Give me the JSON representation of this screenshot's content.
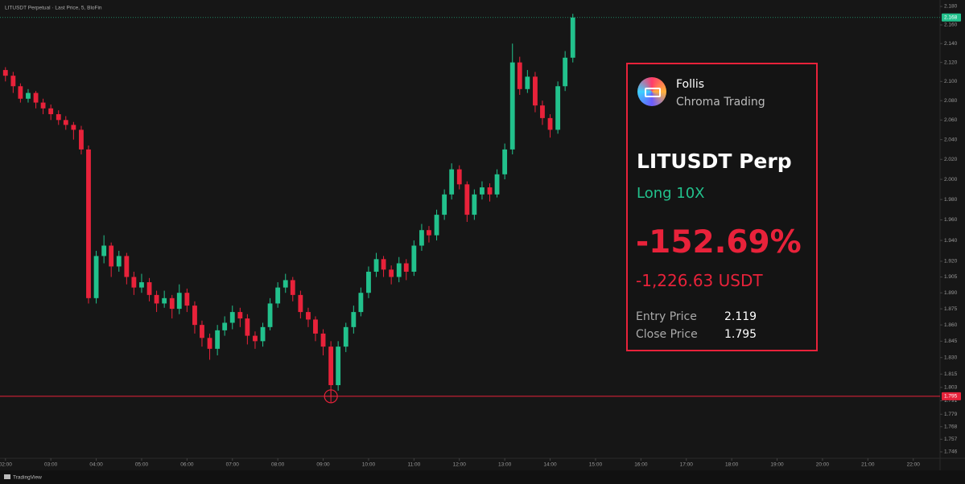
{
  "chart_data": {
    "type": "candlestick",
    "title": "LITUSDT Perpetual · Last Price, 5, BloFin",
    "brand": "TradingView",
    "up_color": "#22c18c",
    "down_color": "#e8223a",
    "log": true,
    "grid": false,
    "xlim": [
      1.88,
      22.59
    ],
    "ylim": [
      1.7404,
      2.187
    ],
    "xticks": [
      {
        "value": 2,
        "label": "02:00"
      },
      {
        "value": 3,
        "label": "03:00"
      },
      {
        "value": 4,
        "label": "04:00"
      },
      {
        "value": 5,
        "label": "05:00"
      },
      {
        "value": 6,
        "label": "06:00"
      },
      {
        "value": 7,
        "label": "07:00"
      },
      {
        "value": 8,
        "label": "08:00"
      },
      {
        "value": 9,
        "label": "09:00"
      },
      {
        "value": 10,
        "label": "10:00"
      },
      {
        "value": 11,
        "label": "11:00"
      },
      {
        "value": 12,
        "label": "12:00"
      },
      {
        "value": 13,
        "label": "13:00"
      },
      {
        "value": 14,
        "label": "14:00"
      },
      {
        "value": 15,
        "label": "15:00"
      },
      {
        "value": 16,
        "label": "16:00"
      },
      {
        "value": 17,
        "label": "17:00"
      },
      {
        "value": 18,
        "label": "18:00"
      },
      {
        "value": 19,
        "label": "19:00"
      },
      {
        "value": 20,
        "label": "20:00"
      },
      {
        "value": 21,
        "label": "21:00"
      },
      {
        "value": 22,
        "label": "22:00"
      }
    ],
    "yticks": [
      {
        "value": 2.18,
        "label": "2.180"
      },
      {
        "value": 2.16,
        "label": "2.160"
      },
      {
        "value": 2.14,
        "label": "2.140"
      },
      {
        "value": 2.12,
        "label": "2.120"
      },
      {
        "value": 2.1,
        "label": "2.100"
      },
      {
        "value": 2.08,
        "label": "2.080"
      },
      {
        "value": 2.06,
        "label": "2.060"
      },
      {
        "value": 2.04,
        "label": "2.040"
      },
      {
        "value": 2.02,
        "label": "2.020"
      },
      {
        "value": 2.0,
        "label": "2.000"
      },
      {
        "value": 1.98,
        "label": "1.980"
      },
      {
        "value": 1.96,
        "label": "1.960"
      },
      {
        "value": 1.94,
        "label": "1.940"
      },
      {
        "value": 1.92,
        "label": "1.920"
      },
      1.905,
      {
        "value": 1.89,
        "label": "1.890"
      },
      1.875,
      {
        "value": 1.86,
        "label": "1.860"
      },
      1.845,
      {
        "value": 1.83,
        "label": "1.830"
      },
      1.815,
      1.803,
      1.791,
      1.779,
      1.768,
      1.757,
      1.746
    ],
    "last_price": 2.168,
    "price_line": 1.795,
    "x": [
      2,
      2.17,
      2.33,
      2.5,
      2.67,
      2.83,
      3,
      3.17,
      3.33,
      3.5,
      3.67,
      3.83,
      4,
      4.17,
      4.33,
      4.5,
      4.67,
      4.83,
      5,
      5.17,
      5.33,
      5.5,
      5.67,
      5.83,
      6,
      6.17,
      6.33,
      6.5,
      6.67,
      6.83,
      7,
      7.17,
      7.33,
      7.5,
      7.67,
      7.83,
      8,
      8.17,
      8.33,
      8.5,
      8.67,
      8.83,
      9,
      9.17,
      9.33,
      9.5,
      9.67,
      9.83,
      10,
      10.17,
      10.33,
      10.5,
      10.67,
      10.83,
      11,
      11.17,
      11.33,
      11.5,
      11.67,
      11.83,
      12,
      12.17,
      12.33,
      12.5,
      12.67,
      12.83,
      13,
      13.17,
      13.33,
      13.5,
      13.67,
      13.83,
      14,
      14.17,
      14.33,
      14.5
    ],
    "ohlc": [
      [
        2.112,
        2.115,
        2.1,
        2.106
      ],
      [
        2.106,
        2.11,
        2.088,
        2.095
      ],
      [
        2.095,
        2.098,
        2.078,
        2.082
      ],
      [
        2.082,
        2.092,
        2.078,
        2.088
      ],
      [
        2.088,
        2.09,
        2.072,
        2.078
      ],
      [
        2.078,
        2.082,
        2.066,
        2.072
      ],
      [
        2.072,
        2.076,
        2.06,
        2.066
      ],
      [
        2.066,
        2.07,
        2.055,
        2.06
      ],
      [
        2.06,
        2.064,
        2.05,
        2.055
      ],
      [
        2.055,
        2.058,
        2.04,
        2.05
      ],
      [
        2.05,
        2.054,
        2.025,
        2.03
      ],
      [
        2.03,
        2.034,
        1.88,
        1.885
      ],
      [
        1.885,
        1.93,
        1.88,
        1.925
      ],
      [
        1.925,
        1.945,
        1.918,
        1.935
      ],
      [
        1.935,
        1.938,
        1.905,
        1.915
      ],
      [
        1.915,
        1.93,
        1.91,
        1.925
      ],
      [
        1.925,
        1.928,
        1.898,
        1.905
      ],
      [
        1.905,
        1.91,
        1.888,
        1.895
      ],
      [
        1.895,
        1.908,
        1.89,
        1.9
      ],
      [
        1.9,
        1.904,
        1.882,
        1.888
      ],
      [
        1.888,
        1.892,
        1.872,
        1.88
      ],
      [
        1.88,
        1.892,
        1.876,
        1.885
      ],
      [
        1.885,
        1.888,
        1.866,
        1.875
      ],
      [
        1.875,
        1.898,
        1.87,
        1.89
      ],
      [
        1.89,
        1.894,
        1.872,
        1.878
      ],
      [
        1.878,
        1.882,
        1.852,
        1.86
      ],
      [
        1.86,
        1.864,
        1.84,
        1.848
      ],
      [
        1.848,
        1.852,
        1.828,
        1.838
      ],
      [
        1.838,
        1.86,
        1.832,
        1.855
      ],
      [
        1.855,
        1.868,
        1.85,
        1.862
      ],
      [
        1.862,
        1.878,
        1.856,
        1.872
      ],
      [
        1.872,
        1.876,
        1.858,
        1.866
      ],
      [
        1.866,
        1.87,
        1.842,
        1.85
      ],
      [
        1.85,
        1.854,
        1.838,
        1.845
      ],
      [
        1.845,
        1.862,
        1.84,
        1.858
      ],
      [
        1.858,
        1.885,
        1.855,
        1.88
      ],
      [
        1.88,
        1.9,
        1.876,
        1.895
      ],
      [
        1.895,
        1.908,
        1.89,
        1.902
      ],
      [
        1.902,
        1.905,
        1.882,
        1.888
      ],
      [
        1.888,
        1.892,
        1.866,
        1.872
      ],
      [
        1.872,
        1.876,
        1.858,
        1.865
      ],
      [
        1.865,
        1.868,
        1.845,
        1.852
      ],
      [
        1.852,
        1.856,
        1.832,
        1.84
      ],
      [
        1.84,
        1.845,
        1.795,
        1.805
      ],
      [
        1.805,
        1.845,
        1.8,
        1.84
      ],
      [
        1.84,
        1.862,
        1.835,
        1.858
      ],
      [
        1.858,
        1.878,
        1.852,
        1.872
      ],
      [
        1.872,
        1.895,
        1.868,
        1.89
      ],
      [
        1.89,
        1.915,
        1.885,
        1.91
      ],
      [
        1.91,
        1.928,
        1.905,
        1.922
      ],
      [
        1.922,
        1.925,
        1.905,
        1.912
      ],
      [
        1.912,
        1.916,
        1.898,
        1.905
      ],
      [
        1.905,
        1.924,
        1.9,
        1.918
      ],
      [
        1.918,
        1.922,
        1.902,
        1.91
      ],
      [
        1.91,
        1.94,
        1.906,
        1.935
      ],
      [
        1.935,
        1.956,
        1.93,
        1.95
      ],
      [
        1.95,
        1.954,
        1.938,
        1.945
      ],
      [
        1.945,
        1.97,
        1.94,
        1.965
      ],
      [
        1.965,
        1.99,
        1.96,
        1.985
      ],
      [
        1.985,
        2.016,
        1.98,
        2.01
      ],
      [
        2.01,
        2.014,
        1.99,
        1.995
      ],
      [
        1.995,
        1.998,
        1.958,
        1.965
      ],
      [
        1.965,
        1.99,
        1.96,
        1.985
      ],
      [
        1.985,
        1.998,
        1.98,
        1.992
      ],
      [
        1.992,
        1.996,
        1.978,
        1.985
      ],
      [
        1.985,
        2.01,
        1.982,
        2.005
      ],
      [
        2.005,
        2.036,
        2.0,
        2.03
      ],
      [
        2.03,
        2.14,
        2.025,
        2.12
      ],
      [
        2.12,
        2.126,
        2.086,
        2.092
      ],
      [
        2.092,
        2.112,
        2.088,
        2.105
      ],
      [
        2.105,
        2.11,
        2.068,
        2.075
      ],
      [
        2.075,
        2.08,
        2.055,
        2.062
      ],
      [
        2.062,
        2.066,
        2.042,
        2.05
      ],
      [
        2.05,
        2.1,
        2.046,
        2.095
      ],
      [
        2.095,
        2.132,
        2.09,
        2.125
      ],
      [
        2.125,
        2.172,
        2.12,
        2.168
      ]
    ]
  },
  "card": {
    "name": "Follis",
    "subtitle": "Chroma Trading",
    "symbol": "LITUSDT Perp",
    "side": "Long 10X",
    "roi": "-152.69%",
    "pnl": "-1,226.63 USDT",
    "entry_label": "Entry Price",
    "entry_price": "2.119",
    "close_label": "Close Price",
    "close_price": "1.795"
  }
}
